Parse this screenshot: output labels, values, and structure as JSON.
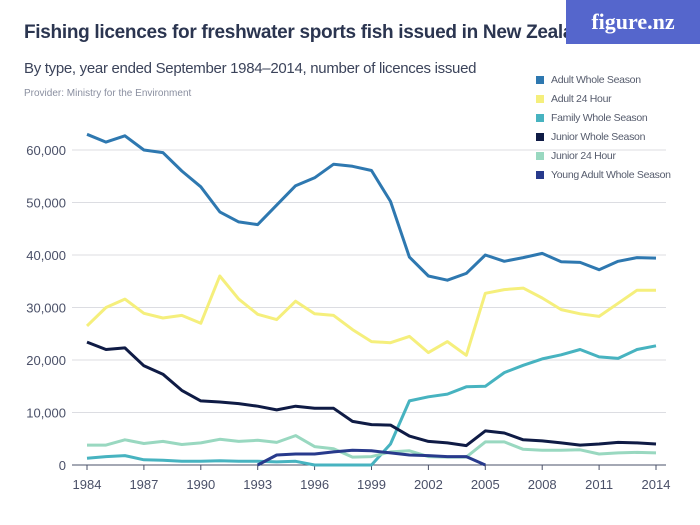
{
  "header": {
    "title": "Fishing licences for freshwater sports fish issued in New Zealand",
    "subtitle": "By type, year ended September 1984–2014, number of licences issued",
    "provider": "Provider: Ministry for the Environment",
    "logo": "figure.nz"
  },
  "chart_data": {
    "type": "line",
    "title": "Fishing licences for freshwater sports fish issued in New Zealand",
    "subtitle": "By type, year ended September 1984–2014, number of licences issued",
    "xlabel": "",
    "ylabel": "",
    "x": [
      1984,
      1985,
      1986,
      1987,
      1988,
      1989,
      1990,
      1991,
      1992,
      1993,
      1994,
      1995,
      1996,
      1997,
      1998,
      1999,
      2000,
      2001,
      2002,
      2003,
      2004,
      2005,
      2006,
      2007,
      2008,
      2009,
      2010,
      2011,
      2012,
      2013,
      2014
    ],
    "xticks": [
      "1984",
      "1987",
      "1990",
      "1993",
      "1996",
      "1999",
      "2002",
      "2005",
      "2008",
      "2011",
      "2014"
    ],
    "yticks": [
      "0",
      "10,000",
      "20,000",
      "30,000",
      "40,000",
      "50,000",
      "60,000"
    ],
    "ylim": [
      0,
      60000
    ],
    "grid": true,
    "legend": "top-right",
    "series": [
      {
        "name": "Adult Whole Season",
        "color": "#2e78b0",
        "values": [
          63000,
          61500,
          62700,
          60000,
          59500,
          56000,
          53000,
          48200,
          46300,
          45800,
          49500,
          53200,
          54700,
          57300,
          56900,
          56100,
          50200,
          39600,
          36000,
          35200,
          36500,
          40000,
          38800,
          39500,
          40300,
          38700,
          38600,
          37200,
          38800,
          39500,
          39400
        ]
      },
      {
        "name": "Adult 24 Hour",
        "color": "#f5ef7c",
        "values": [
          26500,
          30000,
          31600,
          28900,
          28000,
          28500,
          27000,
          36000,
          31600,
          28700,
          27700,
          31200,
          28800,
          28500,
          25800,
          23500,
          23300,
          24500,
          21400,
          23500,
          20900,
          32700,
          33400,
          33700,
          31800,
          29600,
          28800,
          28300,
          30800,
          33300,
          33300
        ]
      },
      {
        "name": "Family Whole Season",
        "color": "#47b3c0",
        "values": [
          1300,
          1600,
          1800,
          1000,
          900,
          700,
          700,
          800,
          700,
          700,
          600,
          700,
          0,
          0,
          0,
          0,
          4000,
          12200,
          13000,
          13500,
          14900,
          15000,
          17600,
          19000,
          20200,
          21000,
          22000,
          20600,
          20300,
          22000,
          22700
        ]
      },
      {
        "name": "Junior Whole Season",
        "color": "#0f1b45",
        "values": [
          23400,
          22000,
          22300,
          18900,
          17300,
          14200,
          12200,
          12000,
          11700,
          11200,
          10500,
          11200,
          10800,
          10800,
          8300,
          7700,
          7600,
          5500,
          4500,
          4200,
          3700,
          6500,
          6100,
          4800,
          4600,
          4200,
          3800,
          4000,
          4300,
          4200,
          4000
        ]
      },
      {
        "name": "Junior 24 Hour",
        "color": "#99d8c0",
        "values": [
          3800,
          3800,
          4800,
          4100,
          4500,
          3900,
          4200,
          4900,
          4500,
          4700,
          4300,
          5600,
          3500,
          3100,
          1500,
          1600,
          2500,
          2700,
          1600,
          1500,
          1500,
          4400,
          4400,
          3000,
          2800,
          2800,
          2900,
          2100,
          2300,
          2400,
          2300
        ]
      },
      {
        "name": "Young Adult Whole Season",
        "color": "#283a8c",
        "values": [
          null,
          null,
          null,
          null,
          null,
          null,
          null,
          null,
          null,
          0,
          1900,
          2100,
          2100,
          2500,
          2800,
          2700,
          2300,
          1900,
          1800,
          1600,
          1600,
          0,
          null,
          null,
          null,
          null,
          null,
          null,
          null,
          null,
          null
        ]
      }
    ]
  }
}
